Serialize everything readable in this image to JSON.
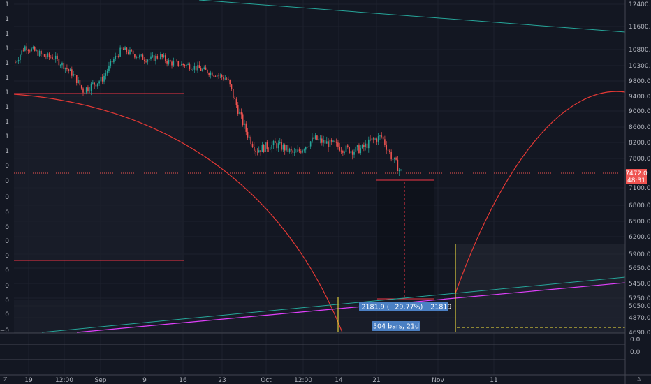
{
  "chart_data": {
    "type": "candlestick",
    "title": "",
    "xlabel": "",
    "ylabel": "",
    "ylim": [
      4550,
      12500
    ],
    "y_ticks": [
      "12400.0",
      "11600.0",
      "10800.0",
      "10300.0",
      "9800.0",
      "9400.0",
      "9000.0",
      "8600.0",
      "8200.0",
      "7800.0",
      "7100.0",
      "6800.0",
      "6500.0",
      "6200.0",
      "5900.0",
      "5650.0",
      "5450.0",
      "5250.0",
      "5050.0",
      "4870.0",
      "4690.0"
    ],
    "x_ticks": [
      "19",
      "12:00",
      "Sep",
      "9",
      "16",
      "23",
      "Oct",
      "12:00",
      "14",
      "21",
      "Nov",
      "11"
    ],
    "left_axis_labels": [
      "1",
      "1",
      "1",
      "1",
      "1",
      "1",
      "1",
      "1",
      "1",
      "1",
      "1",
      "0",
      "0",
      "0",
      "0",
      "0",
      "0",
      "0",
      "0",
      "0",
      "0",
      "0",
      "−0"
    ],
    "indicator_ticks": [
      "0.0",
      "0.0"
    ],
    "price_series": [
      10400,
      10900,
      10750,
      10600,
      10550,
      10300,
      10000,
      9550,
      9700,
      9850,
      10400,
      10800,
      10700,
      10550,
      10500,
      10600,
      10400,
      10350,
      10300,
      10200,
      10100,
      10000,
      9850,
      9100,
      8450,
      8000,
      8100,
      8150,
      8050,
      7900,
      8100,
      8300,
      8200,
      8150,
      8050,
      8000,
      8050,
      8250,
      8350,
      7850,
      7480
    ],
    "current_price": {
      "value": "7472.0",
      "timer": "48:31"
    },
    "measure_label": "−2181.9 (−29.77%) −21819",
    "range_label": "504 bars, 21d",
    "bottom_corner_left": "Z",
    "bottom_corner_right": "A",
    "colors": {
      "up": "#26a69a",
      "down": "#ef5350",
      "curve": "#e53935",
      "hline": "#f23645",
      "trend_teal": "#26a69a",
      "trend_magenta": "#e040fb",
      "vline": "#ffeb3b",
      "label_bg": "#4b80c4"
    }
  }
}
